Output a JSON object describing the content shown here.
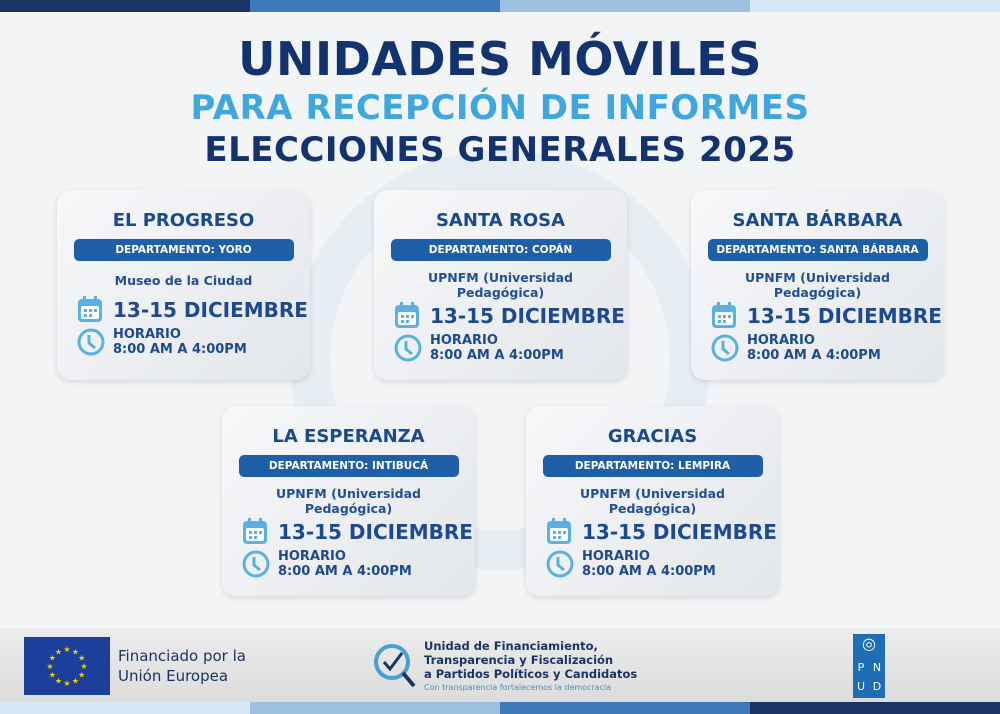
{
  "header": {
    "line1": "UNIDADES MÓVILES",
    "line2": "PARA RECEPCIÓN DE INFORMES",
    "line3": "ELECCIONES GENERALES 2025"
  },
  "colors": {
    "navy": "#12336e",
    "light_blue": "#3fa7dc",
    "band_blue": "#1f5fa8",
    "icon_blue": "#5ab0e0"
  },
  "cards": [
    {
      "name": "EL PROGRESO",
      "department": "DEPARTAMENTO: YORO",
      "venue": "Museo de la Ciudad",
      "date": "13-15 DICIEMBRE",
      "hours_label": "HORARIO",
      "hours": "8:00 AM A 4:00PM"
    },
    {
      "name": "SANTA ROSA",
      "department": "DEPARTAMENTO: COPÁN",
      "venue": "UPNFM (Universidad Pedagógica)",
      "date": "13-15 DICIEMBRE",
      "hours_label": "HORARIO",
      "hours": "8:00 AM A 4:00PM"
    },
    {
      "name": "SANTA BÁRBARA",
      "department": "DEPARTAMENTO: SANTA BÁRBARA",
      "venue": "UPNFM (Universidad Pedagógica)",
      "date": "13-15 DICIEMBRE",
      "hours_label": "HORARIO",
      "hours": "8:00 AM A 4:00PM"
    },
    {
      "name": "LA ESPERANZA",
      "department": "DEPARTAMENTO: INTIBUCÁ",
      "venue": "UPNFM (Universidad Pedagógica)",
      "date": "13-15 DICIEMBRE",
      "hours_label": "HORARIO",
      "hours": "8:00 AM A 4:00PM"
    },
    {
      "name": "GRACIAS",
      "department": "DEPARTAMENTO: LEMPIRA",
      "venue": "UPNFM (Universidad Pedagógica)",
      "date": "13-15 DICIEMBRE",
      "hours_label": "HORARIO",
      "hours": "8:00 AM A 4:00PM"
    }
  ],
  "footer": {
    "eu_text_1": "Financiado por la",
    "eu_text_2": "Unión Europea",
    "unit_1": "Unidad de Financiamiento,",
    "unit_2": "Transparencia y Fiscalización",
    "unit_3": "a Partidos Políticos y Candidatos",
    "unit_tagline": "Con transparencia fortalecemos la democracia",
    "undp_letters": [
      "P",
      "N",
      "U",
      "D"
    ]
  }
}
